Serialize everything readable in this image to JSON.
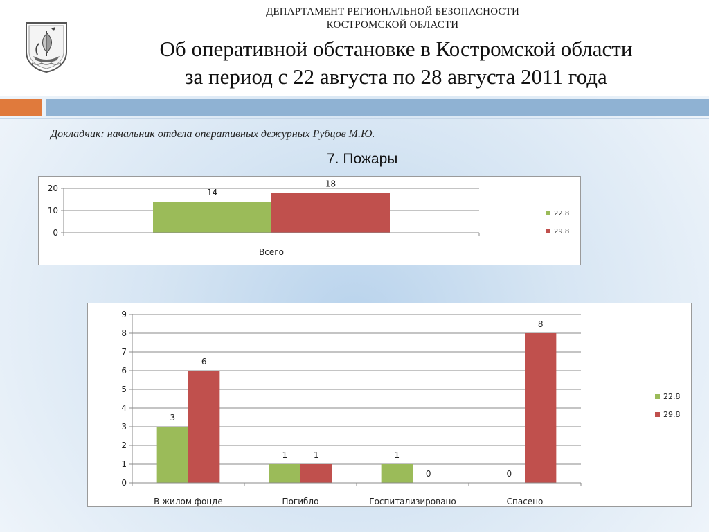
{
  "header": {
    "department_line1": "ДЕПАРТАМЕНТ РЕГИОНАЛЬНОЙ БЕЗОПАСНОСТИ",
    "department_line2": "КОСТРОМСКОЙ ОБЛАСТИ",
    "title_line1": "Об оперативной обстановке в Костромской области",
    "title_line2": "за период с 22 августа по 28 августа 2011 года",
    "emblem_icon": "kostroma-coat-of-arms-icon"
  },
  "reporter": "Докладчик: начальник отдела оперативных дежурных Рубцов М.Ю.",
  "section_title": "7. Пожары",
  "colors": {
    "series1": "#9bbb59",
    "series2": "#c0504d",
    "accent_orange": "#e07a3c",
    "accent_blue": "#8fb2d3"
  },
  "chart_data": [
    {
      "type": "bar",
      "orientation": "vertical",
      "categories": [
        "Всего"
      ],
      "series": [
        {
          "name": "22.8",
          "values": [
            14
          ]
        },
        {
          "name": "29.8",
          "values": [
            18
          ]
        }
      ],
      "ylim": [
        0,
        20
      ],
      "yticks": [
        0,
        10,
        20
      ],
      "grid": true,
      "legend": "right"
    },
    {
      "type": "bar",
      "orientation": "vertical",
      "categories": [
        "В жилом фонде",
        "Погибло",
        "Госпитализировано",
        "Спасено"
      ],
      "series": [
        {
          "name": "22.8",
          "values": [
            3,
            1,
            1,
            0
          ]
        },
        {
          "name": "29.8",
          "values": [
            6,
            1,
            0,
            8
          ]
        }
      ],
      "ylim": [
        0,
        9
      ],
      "yticks": [
        0,
        1,
        2,
        3,
        4,
        5,
        6,
        7,
        8,
        9
      ],
      "grid": true,
      "legend": "right"
    }
  ]
}
